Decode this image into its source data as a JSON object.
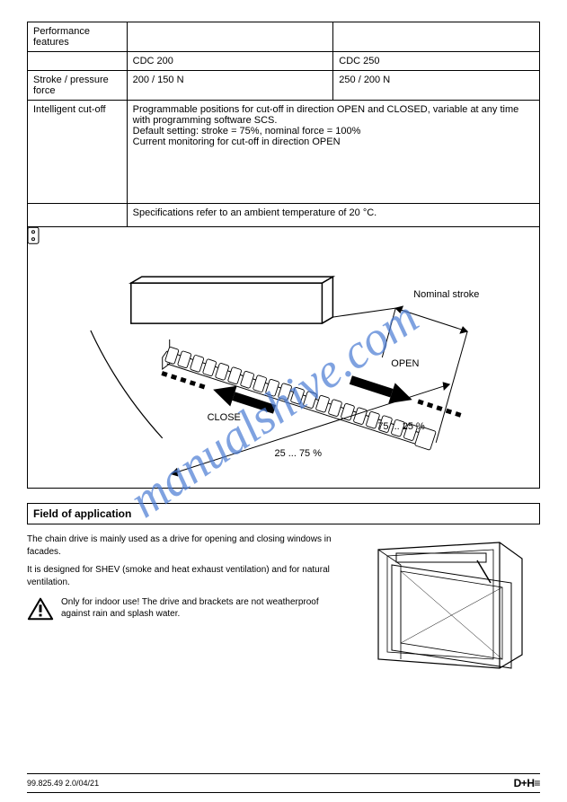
{
  "watermark": {
    "text": "manualshive.com",
    "color": "#4a7bd4",
    "opacity": 0.7,
    "fontsize": 54,
    "rotate": -35
  },
  "table": {
    "header": {
      "col1": "Performance features",
      "col2": "",
      "col3": ""
    },
    "models": {
      "col1": "",
      "col2": "CDC 200",
      "col3": "CDC 250"
    },
    "values": {
      "col1": "Stroke / pressure force",
      "col2": "200 / 150 N",
      "col3": "250 / 200 N"
    },
    "desc": {
      "col1": "Intelligent cut-off",
      "col2": "Programmable positions for cut-off in direction OPEN and CLOSED, variable at any time with programming software SCS.\nDefault setting: stroke = 75%, nominal force = 100%\nCurrent monitoring for cut-off in direction OPEN"
    },
    "note": {
      "col1": "",
      "col2": "Specifications refer to an ambient temperature of 20 °C."
    }
  },
  "diagram": {
    "label_stroke": "Nominal stroke",
    "label_open": "OPEN",
    "label_close": "CLOSE",
    "label_25_75": "25 ... 75 %",
    "label_75_25": "75 ... 25 %"
  },
  "section": {
    "title": "Field of application"
  },
  "application": {
    "text1": "The chain drive is mainly used as a drive for opening and closing windows in facades.",
    "text2": "It is designed for SHEV (smoke and heat exhaust ventilation) and for natural ventilation.",
    "warning": "Only for indoor use! The drive and brackets are not weatherproof against rain and splash water."
  },
  "footer": {
    "left": "99.825.49  2.0/04/21",
    "center": "",
    "logo": "D+H≡"
  }
}
